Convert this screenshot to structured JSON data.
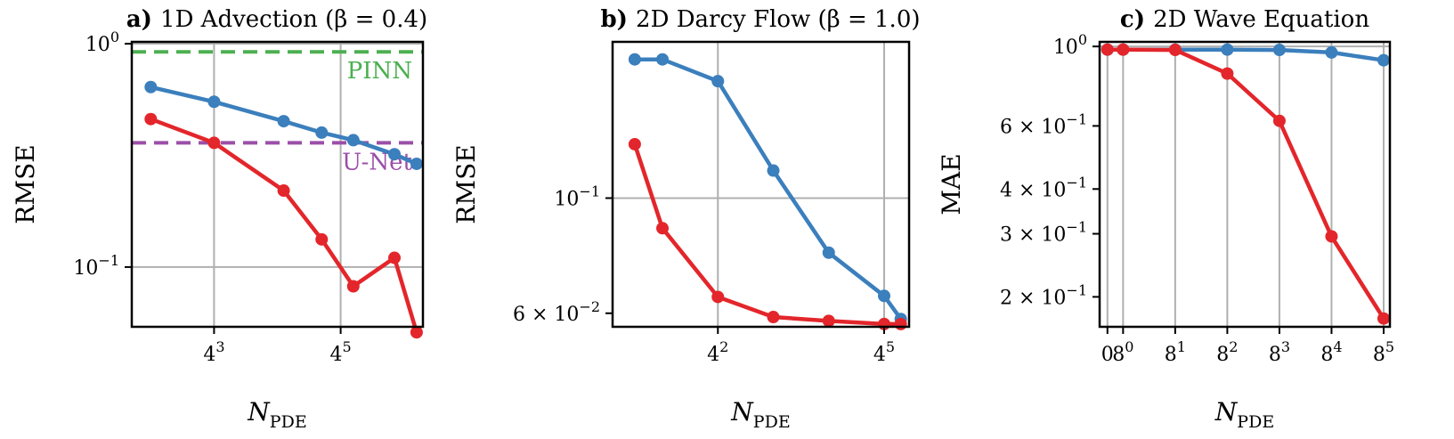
{
  "colors": {
    "blue": "#3b7fbd",
    "red": "#e3262b",
    "green": "#4caf50",
    "purple": "#9b4fa8",
    "grid": "#b0b0b0"
  },
  "chart_data": [
    {
      "type": "line",
      "panel_letter": "a)",
      "title": "1D Advection (β = 0.4)",
      "xscale": "log4",
      "yscale": "log",
      "xlabel": "N",
      "xlabel_sub": "PDE",
      "ylabel": "RMSE",
      "xlim": [
        1.7,
        6.3
      ],
      "ylim": [
        0.054,
        1.02
      ],
      "xticks": [
        {
          "v": 3,
          "base": "4",
          "exp": "3"
        },
        {
          "v": 5,
          "base": "4",
          "exp": "5"
        }
      ],
      "yticks": [
        {
          "v": 1.0,
          "base": "10",
          "exp": "0"
        },
        {
          "v": 0.1,
          "base": "10",
          "exp": "−1"
        }
      ],
      "ygrid": [
        1.0,
        0.1
      ],
      "hlines": [
        {
          "label": "PINN",
          "y": 0.92,
          "color": "#4caf50"
        },
        {
          "label": "U-Net",
          "y": 0.36,
          "color": "#9b4fa8"
        }
      ],
      "series": [
        {
          "color": "#3b7fbd",
          "x": [
            2.0,
            3.0,
            4.1,
            4.7,
            5.2,
            5.85,
            6.2
          ],
          "y": [
            0.64,
            0.55,
            0.45,
            0.4,
            0.37,
            0.32,
            0.29
          ]
        },
        {
          "color": "#e3262b",
          "x": [
            2.0,
            3.0,
            4.1,
            4.7,
            5.2,
            5.85,
            6.2
          ],
          "y": [
            0.46,
            0.36,
            0.22,
            0.133,
            0.082,
            0.11,
            0.051
          ]
        }
      ]
    },
    {
      "type": "line",
      "panel_letter": "b)",
      "title": "2D Darcy Flow (β = 1.0)",
      "xscale": "log4",
      "yscale": "log",
      "xlabel": "N",
      "xlabel_sub": "PDE",
      "ylabel": "RMSE",
      "xlim": [
        0.1,
        5.45
      ],
      "ylim": [
        0.0565,
        0.2
      ],
      "xticks": [
        {
          "v": 2,
          "base": "4",
          "exp": "2"
        },
        {
          "v": 5,
          "base": "4",
          "exp": "5"
        }
      ],
      "yticks": [
        {
          "v": 0.1,
          "base": "10",
          "exp": "−1",
          "prefix": ""
        },
        {
          "v": 0.06,
          "base": "10",
          "exp": "−2",
          "prefix": "6 × "
        }
      ],
      "ygrid": [
        0.1
      ],
      "series": [
        {
          "color": "#3b7fbd",
          "x": [
            0.5,
            1.0,
            2.0,
            3.0,
            4.0,
            5.0,
            5.3
          ],
          "y": [
            0.185,
            0.185,
            0.168,
            0.113,
            0.0785,
            0.0648,
            0.0585
          ]
        },
        {
          "color": "#e3262b",
          "x": [
            0.5,
            1.0,
            2.0,
            3.0,
            4.0,
            5.0,
            5.3
          ],
          "y": [
            0.127,
            0.0875,
            0.0645,
            0.059,
            0.058,
            0.0572,
            0.0572
          ]
        }
      ]
    },
    {
      "type": "line",
      "panel_letter": "c)",
      "title": "2D Wave Equation",
      "xscale": "symlog8",
      "yscale": "log",
      "xlabel": "N",
      "xlabel_sub": "PDE",
      "ylabel": "MAE",
      "xlim": [
        -0.45,
        5.12
      ],
      "ylim": [
        0.165,
        1.03
      ],
      "xticks": [
        {
          "v": -0.3,
          "base": "0",
          "exp": ""
        },
        {
          "v": 0,
          "base": "8",
          "exp": "0"
        },
        {
          "v": 1,
          "base": "8",
          "exp": "1"
        },
        {
          "v": 2,
          "base": "8",
          "exp": "2"
        },
        {
          "v": 3,
          "base": "8",
          "exp": "3"
        },
        {
          "v": 4,
          "base": "8",
          "exp": "4"
        },
        {
          "v": 5,
          "base": "8",
          "exp": "5"
        }
      ],
      "yticks": [
        {
          "v": 1.0,
          "prefix": "",
          "base": "10",
          "exp": "0"
        },
        {
          "v": 0.6,
          "prefix": "6 × ",
          "base": "10",
          "exp": "−1"
        },
        {
          "v": 0.4,
          "prefix": "4 × ",
          "base": "10",
          "exp": "−1"
        },
        {
          "v": 0.3,
          "prefix": "3 × ",
          "base": "10",
          "exp": "−1"
        },
        {
          "v": 0.2,
          "prefix": "2 × ",
          "base": "10",
          "exp": "−1"
        }
      ],
      "ygrid": [
        1.0
      ],
      "series": [
        {
          "color": "#3b7fbd",
          "x": [
            -0.3,
            0,
            1,
            2,
            3,
            4,
            5
          ],
          "y": [
            0.98,
            0.98,
            0.98,
            0.98,
            0.978,
            0.962,
            0.915
          ]
        },
        {
          "color": "#e3262b",
          "x": [
            -0.3,
            0,
            1,
            2,
            3,
            4,
            5
          ],
          "y": [
            0.98,
            0.98,
            0.978,
            0.84,
            0.62,
            0.295,
            0.174
          ]
        }
      ]
    }
  ]
}
